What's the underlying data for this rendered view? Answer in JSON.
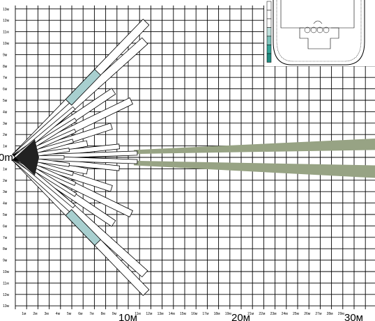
{
  "diagram": {
    "origin_label": "0m",
    "y_labels": [
      "13м",
      "12м",
      "11м",
      "10м",
      "9м",
      "8м",
      "7м",
      "6м",
      "5м",
      "4м",
      "3м",
      "2м",
      "1м",
      "1м",
      "2м",
      "3м",
      "4м",
      "5м",
      "6м",
      "7м",
      "8м",
      "9м",
      "10м",
      "11м",
      "12м",
      "13м"
    ],
    "x_small_labels": [
      "1м",
      "2м",
      "3м",
      "4м",
      "5м",
      "6м",
      "7м",
      "8м",
      "9м",
      "11м",
      "12м",
      "13м",
      "14м",
      "15м",
      "16м",
      "17м",
      "18м",
      "19м",
      "21м",
      "22м",
      "23м",
      "24м",
      "25м",
      "26м",
      "27м",
      "28м",
      "29м"
    ],
    "x_big_labels": [
      "10м",
      "20м",
      "30м"
    ],
    "colors": {
      "grid": "#000000",
      "zone_fill": "#ffffff",
      "zone_teal": "#a8cfcf",
      "long_range": "#97a384",
      "inset_strip": [
        "#ffffff",
        "#ffffff",
        "#ffffff",
        "#bfe0dc",
        "#7dc3bb",
        "#33a397",
        "#1f8a7f"
      ]
    }
  }
}
